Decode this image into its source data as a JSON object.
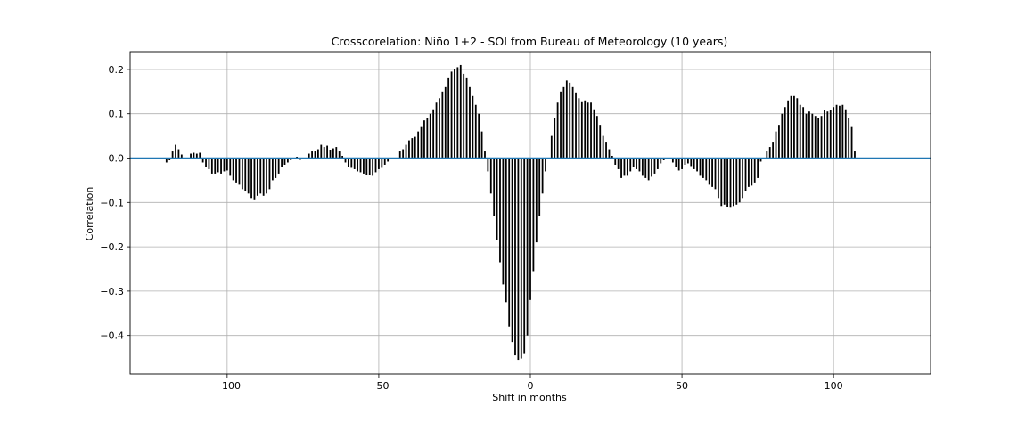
{
  "chart_data": {
    "type": "bar",
    "title": "Crosscorelation: Niño 1+2 - SOI from Bureau of Meteorology (10 years)",
    "xlabel": "Shift in months",
    "ylabel": "Correlation",
    "xlim": [
      -132,
      132
    ],
    "ylim": [
      -0.487,
      0.24
    ],
    "grid": true,
    "x_ticks": [
      -100,
      -50,
      0,
      50,
      100
    ],
    "x_tick_labels": [
      "−100",
      "−50",
      "0",
      "50",
      "100"
    ],
    "y_ticks": [
      0.2,
      0.1,
      0.0,
      -0.1,
      -0.2,
      -0.3,
      -0.4
    ],
    "y_tick_labels": [
      "0.2",
      "0.1",
      "0.0",
      "−0.1",
      "−0.2",
      "−0.3",
      "−0.4"
    ],
    "bar_color": "#000000",
    "zero_line_color": "#1f77b4",
    "x_start": -120,
    "x_step": 1,
    "values": [
      -0.01,
      -0.005,
      0.015,
      0.03,
      0.02,
      0.008,
      0.0,
      0.0,
      0.01,
      0.012,
      0.01,
      0.012,
      -0.01,
      -0.02,
      -0.025,
      -0.035,
      -0.035,
      -0.032,
      -0.035,
      -0.03,
      -0.028,
      -0.04,
      -0.05,
      -0.055,
      -0.06,
      -0.07,
      -0.075,
      -0.08,
      -0.09,
      -0.095,
      -0.085,
      -0.08,
      -0.085,
      -0.08,
      -0.07,
      -0.05,
      -0.045,
      -0.035,
      -0.02,
      -0.015,
      -0.01,
      -0.005,
      0.0,
      0.003,
      -0.005,
      -0.003,
      0.0,
      0.01,
      0.015,
      0.015,
      0.02,
      0.03,
      0.025,
      0.028,
      0.018,
      0.022,
      0.025,
      0.015,
      0.005,
      -0.01,
      -0.02,
      -0.022,
      -0.025,
      -0.03,
      -0.032,
      -0.035,
      -0.038,
      -0.038,
      -0.04,
      -0.032,
      -0.025,
      -0.022,
      -0.015,
      -0.008,
      -0.003,
      0.0,
      0.0,
      0.015,
      0.02,
      0.03,
      0.04,
      0.045,
      0.048,
      0.06,
      0.07,
      0.085,
      0.09,
      0.1,
      0.11,
      0.125,
      0.135,
      0.15,
      0.16,
      0.18,
      0.195,
      0.2,
      0.205,
      0.21,
      0.19,
      0.18,
      0.16,
      0.14,
      0.12,
      0.1,
      0.06,
      0.015,
      -0.03,
      -0.08,
      -0.13,
      -0.185,
      -0.235,
      -0.285,
      -0.325,
      -0.38,
      -0.415,
      -0.445,
      -0.455,
      -0.452,
      -0.44,
      -0.4,
      -0.32,
      -0.255,
      -0.19,
      -0.13,
      -0.08,
      -0.03,
      0.0,
      0.05,
      0.09,
      0.125,
      0.15,
      0.16,
      0.175,
      0.17,
      0.16,
      0.148,
      0.135,
      0.128,
      0.13,
      0.125,
      0.125,
      0.11,
      0.095,
      0.075,
      0.05,
      0.035,
      0.02,
      0.005,
      -0.015,
      -0.025,
      -0.045,
      -0.04,
      -0.04,
      -0.03,
      -0.02,
      -0.025,
      -0.03,
      -0.04,
      -0.045,
      -0.05,
      -0.042,
      -0.035,
      -0.025,
      -0.012,
      -0.005,
      0.0,
      -0.003,
      -0.01,
      -0.02,
      -0.028,
      -0.025,
      -0.015,
      -0.012,
      -0.018,
      -0.025,
      -0.03,
      -0.04,
      -0.045,
      -0.05,
      -0.06,
      -0.065,
      -0.07,
      -0.09,
      -0.108,
      -0.105,
      -0.11,
      -0.112,
      -0.108,
      -0.105,
      -0.1,
      -0.09,
      -0.075,
      -0.065,
      -0.062,
      -0.055,
      -0.045,
      -0.008,
      0.0,
      0.015,
      0.025,
      0.035,
      0.06,
      0.075,
      0.1,
      0.115,
      0.13,
      0.14,
      0.14,
      0.135,
      0.12,
      0.115,
      0.1,
      0.105,
      0.1,
      0.095,
      0.09,
      0.095,
      0.108,
      0.105,
      0.108,
      0.115,
      0.12,
      0.118,
      0.12,
      0.11,
      0.09,
      0.07,
      0.015
    ]
  }
}
